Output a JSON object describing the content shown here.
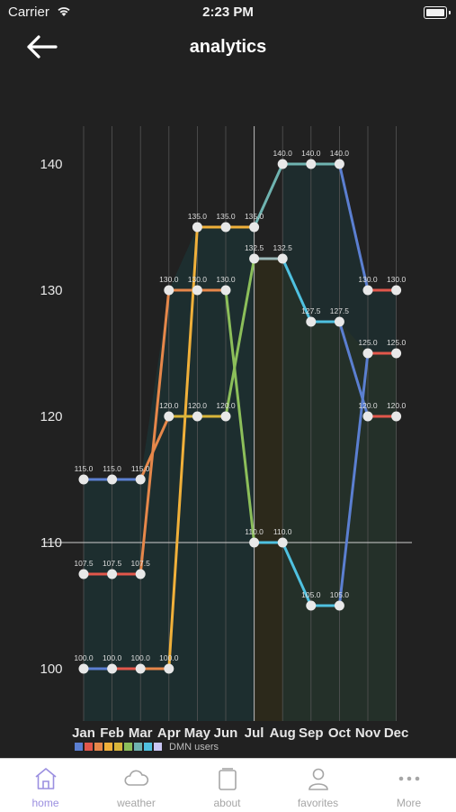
{
  "status": {
    "carrier": "Carrier",
    "time": "2:23 PM"
  },
  "header": {
    "title": "analytics"
  },
  "chart_data": {
    "type": "line",
    "categories": [
      "Jan",
      "Feb",
      "Mar",
      "Apr",
      "May",
      "Jun",
      "Jul",
      "Aug",
      "Sep",
      "Oct",
      "Nov",
      "Dec"
    ],
    "ylim": [
      98.5,
      143
    ],
    "yticks": [
      100,
      110,
      120,
      130,
      140
    ],
    "limit_line": 110,
    "series": [
      {
        "name": "DMN users",
        "color": "#5b7fd1",
        "values": [
          115.0,
          115.0,
          115.0,
          null,
          null,
          null,
          null,
          140.0,
          140.0,
          140.0,
          130.0,
          130.0
        ],
        "connect": [
          0,
          1,
          2
        ]
      },
      {
        "name": "",
        "color": "#e6874a",
        "values": [
          107.5,
          107.5,
          107.5,
          130.0,
          130.0,
          130.0,
          null,
          null,
          null,
          null,
          null,
          null
        ]
      },
      {
        "name": "",
        "color": "#f0b03a",
        "values": [
          100.0,
          100.0,
          100.0,
          100.0,
          135.0,
          135.0,
          135.0,
          null,
          null,
          null,
          null,
          null
        ]
      },
      {
        "name": "",
        "color": "#d9b53a",
        "values": [
          null,
          null,
          null,
          120.0,
          120.0,
          120.0,
          null,
          null,
          null,
          null,
          null,
          null
        ]
      },
      {
        "name": "",
        "color": "#8cbf5a",
        "values": [
          null,
          null,
          null,
          null,
          null,
          130.0,
          110.0,
          null,
          null,
          null,
          null,
          null
        ]
      }
    ],
    "segments": [
      {
        "color": "#5b7fd1",
        "points": [
          [
            0,
            115.0
          ],
          [
            1,
            115.0
          ],
          [
            2,
            115.0
          ]
        ]
      },
      {
        "color": "#e2574b",
        "points": [
          [
            0,
            107.5
          ],
          [
            1,
            107.5
          ],
          [
            2,
            107.5
          ]
        ]
      },
      {
        "color": "#5b7fd1",
        "points": [
          [
            0,
            100.0
          ],
          [
            1,
            100.0
          ]
        ]
      },
      {
        "color": "#e2574b",
        "points": [
          [
            1,
            100.0
          ],
          [
            2,
            100.0
          ]
        ]
      },
      {
        "color": "#e6874a",
        "points": [
          [
            2,
            100.0
          ],
          [
            3,
            100.0
          ]
        ]
      },
      {
        "color": "#e6874a",
        "points": [
          [
            2,
            107.5
          ],
          [
            3,
            130.0
          ],
          [
            4,
            130.0
          ],
          [
            5,
            130.0
          ]
        ]
      },
      {
        "color": "#e6874a",
        "points": [
          [
            2,
            115.0
          ],
          [
            3,
            120.0
          ]
        ]
      },
      {
        "color": "#f0b03a",
        "points": [
          [
            3,
            100.0
          ],
          [
            4,
            135.0
          ],
          [
            5,
            135.0
          ],
          [
            6,
            135.0
          ]
        ]
      },
      {
        "color": "#d9b53a",
        "points": [
          [
            3,
            120.0
          ],
          [
            4,
            120.0
          ],
          [
            5,
            120.0
          ]
        ]
      },
      {
        "color": "#8cbf5a",
        "points": [
          [
            5,
            130.0
          ],
          [
            6,
            110.0
          ]
        ]
      },
      {
        "color": "#8cbf5a",
        "points": [
          [
            5,
            120.0
          ],
          [
            6,
            132.5
          ]
        ]
      },
      {
        "color": "#6fb3b0",
        "points": [
          [
            6,
            135.0
          ],
          [
            7,
            140.0
          ],
          [
            8,
            140.0
          ],
          [
            9,
            140.0
          ]
        ]
      },
      {
        "color": "#9ab8b8",
        "points": [
          [
            6,
            132.5
          ],
          [
            7,
            132.5
          ]
        ]
      },
      {
        "color": "#4fc1e0",
        "points": [
          [
            7,
            132.5
          ],
          [
            8,
            127.5
          ],
          [
            9,
            127.5
          ]
        ]
      },
      {
        "color": "#4fc1e0",
        "points": [
          [
            6,
            110.0
          ],
          [
            7,
            110.0
          ],
          [
            8,
            105.0
          ],
          [
            9,
            105.0
          ]
        ]
      },
      {
        "color": "#5b7fd1",
        "points": [
          [
            9,
            140.0
          ],
          [
            10,
            130.0
          ]
        ]
      },
      {
        "color": "#e2574b",
        "points": [
          [
            10,
            130.0
          ],
          [
            11,
            130.0
          ]
        ]
      },
      {
        "color": "#5b7fd1",
        "points": [
          [
            9,
            127.5
          ],
          [
            10,
            120.0
          ]
        ]
      },
      {
        "color": "#e2574b",
        "points": [
          [
            10,
            120.0
          ],
          [
            11,
            120.0
          ]
        ]
      },
      {
        "color": "#5b7fd1",
        "points": [
          [
            9,
            105.0
          ],
          [
            10,
            125.0
          ]
        ]
      },
      {
        "color": "#e2574b",
        "points": [
          [
            10,
            125.0
          ],
          [
            11,
            125.0
          ]
        ]
      }
    ],
    "points": [
      [
        0,
        115.0
      ],
      [
        1,
        115.0
      ],
      [
        2,
        115.0
      ],
      [
        0,
        107.5
      ],
      [
        1,
        107.5
      ],
      [
        2,
        107.5
      ],
      [
        0,
        100.0
      ],
      [
        1,
        100.0
      ],
      [
        2,
        100.0
      ],
      [
        3,
        100.0
      ],
      [
        3,
        130.0
      ],
      [
        4,
        130.0
      ],
      [
        5,
        130.0
      ],
      [
        3,
        120.0
      ],
      [
        4,
        120.0
      ],
      [
        5,
        120.0
      ],
      [
        4,
        135.0
      ],
      [
        5,
        135.0
      ],
      [
        6,
        135.0
      ],
      [
        6,
        132.5
      ],
      [
        7,
        132.5
      ],
      [
        6,
        110.0
      ],
      [
        7,
        110.0
      ],
      [
        7,
        140.0
      ],
      [
        8,
        140.0
      ],
      [
        9,
        140.0
      ],
      [
        8,
        127.5
      ],
      [
        9,
        127.5
      ],
      [
        8,
        105.0
      ],
      [
        9,
        105.0
      ],
      [
        10,
        130.0
      ],
      [
        11,
        130.0
      ],
      [
        10,
        125.0
      ],
      [
        11,
        125.0
      ],
      [
        10,
        120.0
      ],
      [
        11,
        120.0
      ]
    ],
    "value_labels": [
      [
        0,
        115.0,
        "115.0"
      ],
      [
        1,
        115.0,
        "115.0"
      ],
      [
        2,
        115.0,
        "115.0"
      ],
      [
        0,
        107.5,
        "107.5"
      ],
      [
        1,
        107.5,
        "107.5"
      ],
      [
        2,
        107.5,
        "107.5"
      ],
      [
        0,
        100.0,
        "100.0"
      ],
      [
        1,
        100.0,
        "100.0"
      ],
      [
        2,
        100.0,
        "100.0"
      ],
      [
        3,
        100.0,
        "100.0"
      ],
      [
        3,
        130.0,
        "130.0"
      ],
      [
        4,
        130.0,
        "130.0"
      ],
      [
        5,
        130.0,
        "130.0"
      ],
      [
        3,
        120.0,
        "120.0"
      ],
      [
        4,
        120.0,
        "120.0"
      ],
      [
        5,
        120.0,
        "120.0"
      ],
      [
        4,
        135.0,
        "135.0"
      ],
      [
        5,
        135.0,
        "135.0"
      ],
      [
        6,
        135.0,
        "135.0"
      ],
      [
        6,
        132.5,
        "132.5"
      ],
      [
        7,
        132.5,
        "132.5"
      ],
      [
        6,
        110.0,
        "110.0"
      ],
      [
        7,
        110.0,
        "110.0"
      ],
      [
        7,
        140.0,
        "140.0"
      ],
      [
        8,
        140.0,
        "140.0"
      ],
      [
        9,
        140.0,
        "140.0"
      ],
      [
        8,
        127.5,
        "127.5"
      ],
      [
        9,
        127.5,
        "127.5"
      ],
      [
        8,
        105.0,
        "105.0"
      ],
      [
        9,
        105.0,
        "105.0"
      ],
      [
        10,
        130.0,
        "130.0"
      ],
      [
        11,
        130.0,
        "130.0"
      ],
      [
        10,
        125.0,
        "125.0"
      ],
      [
        11,
        125.0,
        "125.0"
      ],
      [
        10,
        120.0,
        "120.0"
      ],
      [
        11,
        120.0,
        "120.0"
      ]
    ],
    "fills": [
      {
        "color": "#1b3a3c",
        "opacity": 0.55,
        "points": [
          [
            0,
            115.0
          ],
          [
            1,
            115.0
          ],
          [
            2,
            115.0
          ],
          [
            3,
            130.0
          ],
          [
            4,
            135.0
          ],
          [
            5,
            135.0
          ],
          [
            6,
            135.0
          ]
        ]
      },
      {
        "color": "#3a3315",
        "opacity": 0.45,
        "points": [
          [
            6,
            132.5
          ],
          [
            7,
            132.5
          ],
          [
            8,
            127.5
          ],
          [
            9,
            127.5
          ],
          [
            10,
            125.0
          ],
          [
            11,
            125.0
          ]
        ]
      },
      {
        "color": "#1b3a3c",
        "opacity": 0.45,
        "points": [
          [
            7,
            140.0
          ],
          [
            8,
            140.0
          ],
          [
            9,
            140.0
          ],
          [
            10,
            130.0
          ],
          [
            11,
            130.0
          ]
        ]
      }
    ]
  },
  "legend": {
    "label": "DMN users",
    "swatches": [
      "#5b7fd1",
      "#e2574b",
      "#e6874a",
      "#f0b03a",
      "#d9b53a",
      "#8cbf5a",
      "#6fb3b0",
      "#4fc1e0",
      "#c9c6f5"
    ]
  },
  "tabs": [
    {
      "label": "home",
      "icon": "home-icon",
      "active": true
    },
    {
      "label": "weather",
      "icon": "cloud-icon",
      "active": false
    },
    {
      "label": "about",
      "icon": "about-icon",
      "active": false
    },
    {
      "label": "favorites",
      "icon": "person-icon",
      "active": false
    },
    {
      "label": "More",
      "icon": "more-icon",
      "active": false
    }
  ]
}
